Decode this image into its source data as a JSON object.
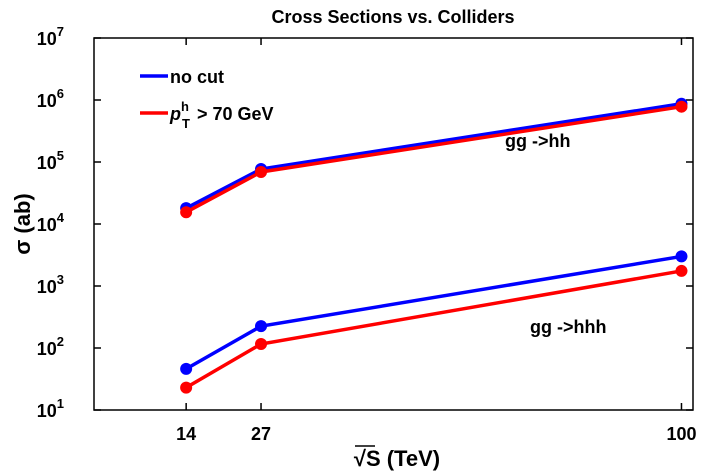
{
  "chart_data": {
    "type": "line",
    "title": "Cross Sections vs. Colliders",
    "xlabel": "√S (TeV)",
    "ylabel": "σ (ab)",
    "x": [
      14,
      27,
      100
    ],
    "xlim": [
      -2,
      102
    ],
    "xticks": [
      14,
      27,
      100
    ],
    "ylim": [
      10,
      10000000
    ],
    "yscale": "log",
    "yticks": [
      {
        "value": 10,
        "label": "10",
        "exponent": "1"
      },
      {
        "value": 100,
        "label": "10",
        "exponent": "2"
      },
      {
        "value": 1000,
        "label": "10",
        "exponent": "3"
      },
      {
        "value": 10000,
        "label": "10",
        "exponent": "4"
      },
      {
        "value": 100000,
        "label": "10",
        "exponent": "5"
      },
      {
        "value": 1000000,
        "label": "10",
        "exponent": "6"
      },
      {
        "value": 10000000,
        "label": "10",
        "exponent": "7"
      }
    ],
    "legend": [
      {
        "name": "no cut",
        "color": "#0000ff"
      },
      {
        "name": {
          "base": "p",
          "sub": "T",
          "sup": "h",
          "rest": " > 70 GeV"
        },
        "color": "#ff0000"
      }
    ],
    "legend_position": "upper left",
    "series": [
      {
        "legend": 0,
        "values": [
          18000,
          77000,
          870000
        ]
      },
      {
        "legend": 1,
        "values": [
          15500,
          69000,
          780000
        ]
      },
      {
        "legend": 0,
        "values": [
          46,
          225,
          3000
        ]
      },
      {
        "legend": 1,
        "values": [
          23,
          116,
          1750
        ]
      }
    ],
    "annotations": [
      "gg ->hh",
      "gg ->hhh"
    ]
  }
}
